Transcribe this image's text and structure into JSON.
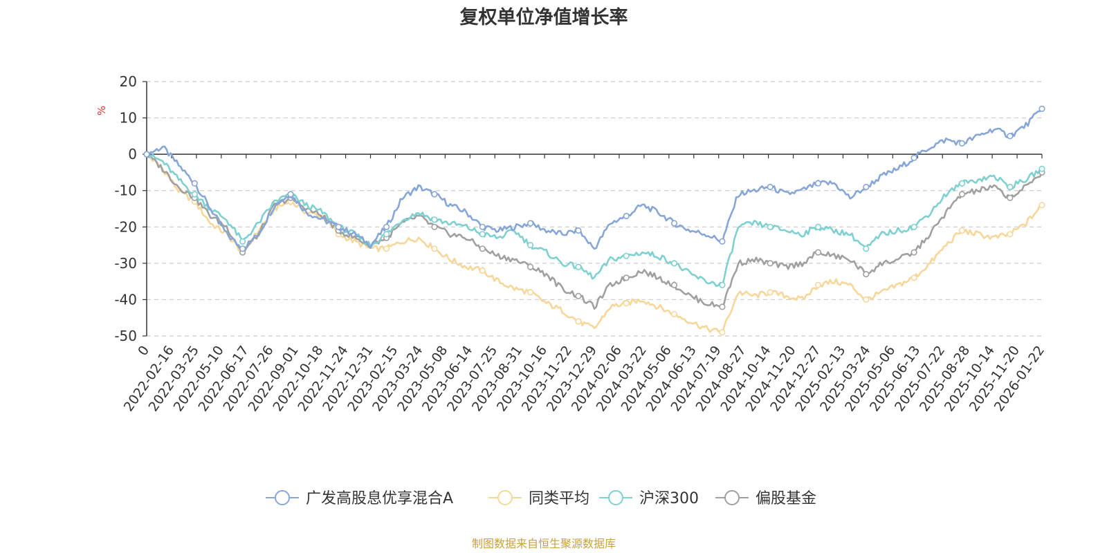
{
  "chart_data": {
    "type": "line",
    "title": "复权单位净值增长率",
    "y_unit": "%",
    "ylim": [
      -50,
      20
    ],
    "y_ticks": [
      20,
      10,
      0,
      -10,
      -20,
      -30,
      -40,
      -50
    ],
    "x_tick_labels": [
      "0",
      "2022-02-16",
      "2022-03-25",
      "2022-05-10",
      "2022-06-17",
      "2022-07-26",
      "2022-09-01",
      "2022-10-18",
      "2022-11-24",
      "2022-12-31",
      "2023-02-15",
      "2023-03-24",
      "2023-05-08",
      "2023-06-14",
      "2023-07-25",
      "2023-08-31",
      "2023-10-16",
      "2023-11-22",
      "2023-12-29",
      "2024-02-06",
      "2024-03-22",
      "2024-05-06",
      "2024-06-13",
      "2024-07-19",
      "2024-08-27",
      "2024-10-14",
      "2024-11-20",
      "2024-12-27",
      "2025-02-13",
      "2025-03-24",
      "2025-05-06",
      "2025-06-13",
      "2025-07-22",
      "2025-08-28",
      "2025-10-14",
      "2025-11-20",
      "2026-01-22"
    ],
    "grid": "horizontal-dashed",
    "legend_position": "bottom",
    "source": "制图数据来自恒生聚源数据库",
    "series": [
      {
        "name": "广发高股息优享混合A",
        "color": "#87a6d8",
        "values": [
          0,
          2,
          -3,
          -8,
          -15,
          -22,
          -26,
          -22,
          -14,
          -11,
          -16,
          -18,
          -20,
          -22,
          -25,
          -20,
          -12,
          -9,
          -11,
          -14,
          -16,
          -20,
          -21,
          -20,
          -19,
          -21,
          -22,
          -21,
          -26,
          -19,
          -17,
          -14,
          -16,
          -19,
          -21,
          -22,
          -24,
          -11,
          -10,
          -9,
          -11,
          -10,
          -8,
          -8,
          -12,
          -9,
          -6,
          -4,
          -1,
          2,
          4,
          3,
          5,
          7,
          5,
          8,
          12.5
        ]
      },
      {
        "name": "同类平均",
        "color": "#f7d799",
        "values": [
          0,
          -4,
          -10,
          -13,
          -19,
          -22,
          -27,
          -21,
          -15,
          -13,
          -16,
          -17,
          -22,
          -24,
          -26,
          -26,
          -24,
          -23,
          -26,
          -29,
          -31,
          -32,
          -35,
          -37,
          -38,
          -41,
          -43,
          -46,
          -48,
          -42,
          -41,
          -40,
          -42,
          -44,
          -46,
          -48,
          -49,
          -38,
          -39,
          -38,
          -39,
          -40,
          -36,
          -35,
          -36,
          -40,
          -38,
          -36,
          -34,
          -30,
          -25,
          -21,
          -22,
          -23,
          -22,
          -19,
          -14
        ]
      },
      {
        "name": "沪深300",
        "color": "#7fd0d0",
        "values": [
          0,
          -2,
          -7,
          -11,
          -15,
          -18,
          -24,
          -19,
          -13,
          -11,
          -14,
          -16,
          -20,
          -22,
          -25,
          -22,
          -18,
          -16,
          -18,
          -19,
          -20,
          -22,
          -23,
          -21,
          -25,
          -27,
          -30,
          -31,
          -34,
          -29,
          -28,
          -27,
          -28,
          -30,
          -33,
          -35,
          -36,
          -20,
          -19,
          -20,
          -21,
          -22,
          -20,
          -21,
          -22,
          -26,
          -22,
          -21,
          -20,
          -16,
          -11,
          -8,
          -7,
          -6,
          -9,
          -7,
          -4
        ]
      },
      {
        "name": "偏股基金",
        "color": "#a0a0a0",
        "values": [
          0,
          -4,
          -9,
          -12,
          -17,
          -20,
          -27,
          -22,
          -14,
          -12,
          -15,
          -17,
          -21,
          -23,
          -25,
          -23,
          -19,
          -17,
          -20,
          -22,
          -23,
          -26,
          -28,
          -29,
          -31,
          -33,
          -37,
          -39,
          -42,
          -36,
          -34,
          -32,
          -34,
          -36,
          -39,
          -41,
          -42,
          -30,
          -29,
          -30,
          -31,
          -30,
          -27,
          -28,
          -29,
          -33,
          -30,
          -29,
          -27,
          -22,
          -16,
          -11,
          -10,
          -9,
          -12,
          -9,
          -5
        ]
      }
    ]
  }
}
